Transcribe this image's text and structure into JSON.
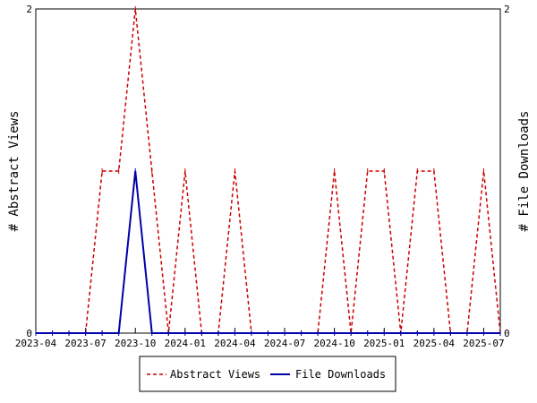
{
  "chart_data": {
    "type": "line",
    "x": [
      "2023-04",
      "2023-05",
      "2023-06",
      "2023-07",
      "2023-08",
      "2023-09",
      "2023-10",
      "2023-11",
      "2023-12",
      "2024-01",
      "2024-02",
      "2024-03",
      "2024-04",
      "2024-05",
      "2024-06",
      "2024-07",
      "2024-08",
      "2024-09",
      "2024-10",
      "2024-11",
      "2024-12",
      "2025-01",
      "2025-02",
      "2025-03",
      "2025-04",
      "2025-05",
      "2025-06",
      "2025-07",
      "2025-08"
    ],
    "x_tick_labels": [
      "2023-04",
      "2023-07",
      "2023-10",
      "2024-01",
      "2024-04",
      "2024-07",
      "2024-10",
      "2025-01",
      "2025-04",
      "2025-07"
    ],
    "series": [
      {
        "name": "Abstract Views",
        "axis": "left",
        "color": "#cc0000",
        "style": "dashed",
        "values": [
          0,
          0,
          0,
          0,
          1,
          1,
          2,
          1,
          0,
          1,
          0,
          0,
          1,
          0,
          0,
          0,
          0,
          0,
          1,
          0,
          1,
          1,
          0,
          1,
          1,
          0,
          0,
          1,
          0
        ]
      },
      {
        "name": "File Downloads",
        "axis": "right",
        "color": "#0000aa",
        "style": "solid",
        "values": [
          0,
          0,
          0,
          0,
          0,
          0,
          1,
          0,
          0,
          0,
          0,
          0,
          0,
          0,
          0,
          0,
          0,
          0,
          0,
          0,
          0,
          0,
          0,
          0,
          0,
          0,
          0,
          0,
          0
        ]
      }
    ],
    "ylabel_left": "# Abstract Views",
    "ylabel_right": "# File Downloads",
    "ylim_left": [
      0,
      2
    ],
    "ylim_right": [
      0,
      2
    ],
    "y_tick_labels": [
      "0",
      "2"
    ],
    "legend_position": "bottom-center",
    "grid": false
  }
}
